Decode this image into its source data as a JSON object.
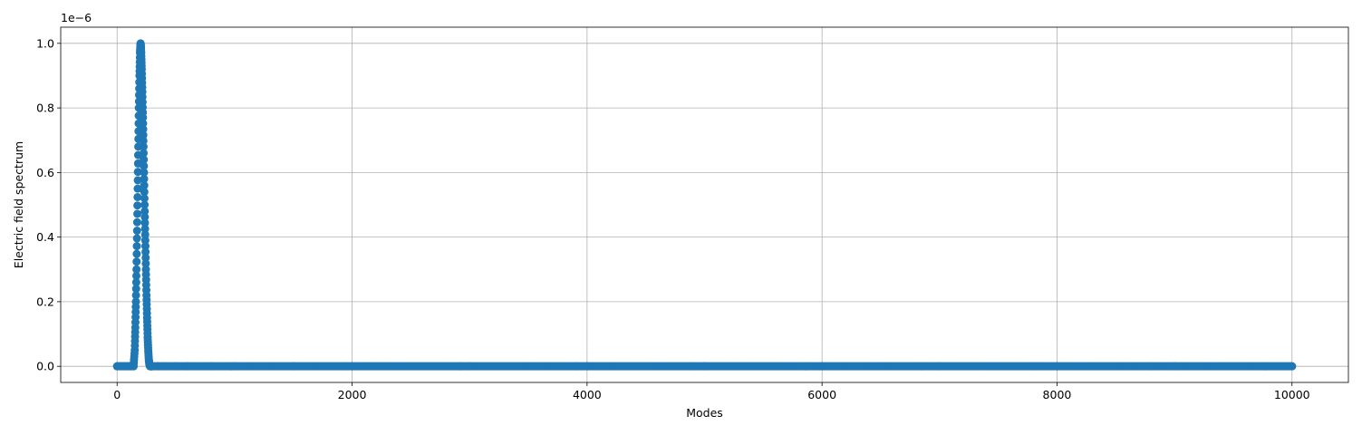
{
  "chart_data": {
    "type": "scatter",
    "title": "",
    "xlabel": "Modes",
    "ylabel": "Electric field spectrum",
    "y_offset_label": "1e−6",
    "y_scale_factor": 1e-06,
    "xlim": [
      -480,
      10480
    ],
    "ylim": [
      -0.05,
      1.05
    ],
    "xticks": [
      0,
      2000,
      4000,
      6000,
      8000,
      10000
    ],
    "xtick_labels": [
      "0",
      "2000",
      "4000",
      "6000",
      "8000",
      "10000"
    ],
    "yticks": [
      0.0,
      0.2,
      0.4,
      0.6,
      0.8,
      1.0
    ],
    "ytick_labels": [
      "0.0",
      "0.2",
      "0.4",
      "0.6",
      "0.8",
      "1.0"
    ],
    "grid": true,
    "legend": "none",
    "marker_color": "#1f77b4",
    "series": [
      {
        "x": [
          0,
          20,
          40,
          60,
          80,
          100,
          120,
          140,
          150,
          155,
          160,
          165,
          170,
          175,
          180,
          185,
          190,
          195,
          198,
          200,
          202,
          205,
          210,
          215,
          220,
          225,
          230,
          235,
          240,
          245,
          250,
          255,
          260,
          265,
          270,
          275,
          280,
          290,
          300,
          350,
          400,
          500,
          600,
          800,
          1000,
          1500,
          2000,
          3000,
          4000,
          5000,
          6000,
          7000,
          8000,
          9000,
          10000
        ],
        "y": [
          0,
          0,
          0,
          0,
          0,
          0,
          0,
          0,
          0.05,
          0.12,
          0.2,
          0.3,
          0.42,
          0.55,
          0.68,
          0.8,
          0.9,
          0.97,
          0.99,
          1.0,
          0.99,
          0.97,
          0.92,
          0.85,
          0.77,
          0.68,
          0.58,
          0.48,
          0.39,
          0.3,
          0.22,
          0.15,
          0.09,
          0.05,
          0.02,
          0.005,
          0,
          0,
          0,
          0,
          0,
          0,
          0,
          0,
          0,
          0,
          0,
          0,
          0,
          0,
          0,
          0,
          0,
          0,
          0
        ]
      }
    ]
  }
}
